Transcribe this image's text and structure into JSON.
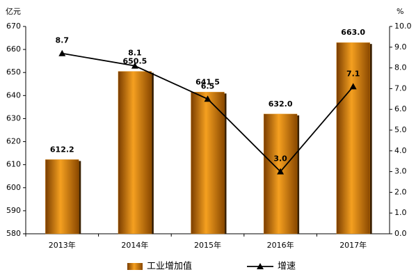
{
  "chart_data": {
    "type": "bar-line",
    "y_label": "亿元",
    "y2_label": "%",
    "categories": [
      "2013年",
      "2014年",
      "2015年",
      "2016年",
      "2017年"
    ],
    "series": [
      {
        "name": "工业增加值",
        "type": "bar",
        "color": "#e8900c",
        "values": [
          612.2,
          650.5,
          641.5,
          632.0,
          663.0
        ],
        "value_labels": [
          "612.2",
          "650.5",
          "641.5",
          "632.0",
          "663.0"
        ]
      },
      {
        "name": "增速",
        "type": "line",
        "axis": "y2",
        "color": "#000000",
        "values": [
          8.7,
          8.1,
          6.5,
          3.0,
          7.1
        ],
        "value_labels": [
          "8.7",
          "8.1",
          "6.5",
          "3.0",
          "7.1"
        ]
      }
    ],
    "ylim": [
      580,
      670
    ],
    "yticks": [
      580,
      590,
      600,
      610,
      620,
      630,
      640,
      650,
      660,
      670
    ],
    "y2lim": [
      0,
      10
    ],
    "y2ticks": [
      {
        "value": 0,
        "label": "0.0"
      },
      {
        "value": 1,
        "label": "1.0"
      },
      {
        "value": 2,
        "label": "2.0"
      },
      {
        "value": 3,
        "label": "3.0"
      },
      {
        "value": 4,
        "label": "4.0"
      },
      {
        "value": 5,
        "label": "5.0"
      },
      {
        "value": 6,
        "label": "6.0"
      },
      {
        "value": 7,
        "label": "7.0"
      },
      {
        "value": 8,
        "label": "8.0"
      },
      {
        "value": 9,
        "label": "9.0"
      },
      {
        "value": 10,
        "label": "10.0"
      }
    ],
    "legend": "bottom"
  }
}
